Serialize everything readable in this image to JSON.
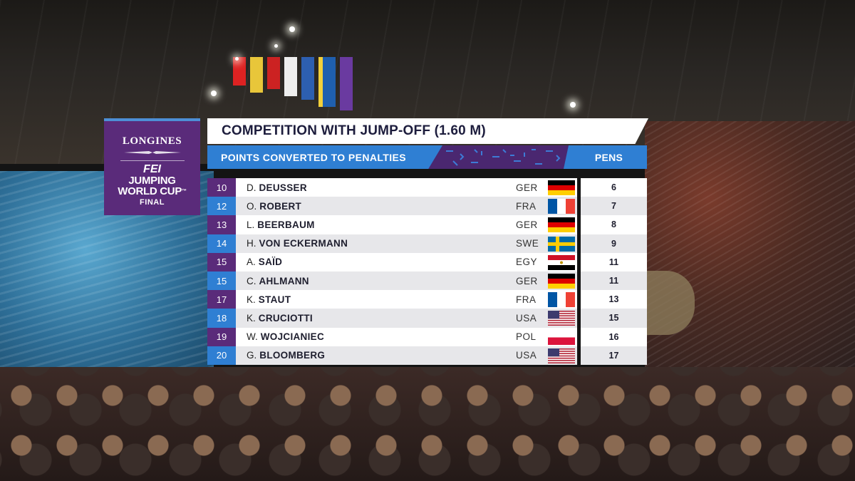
{
  "logo": {
    "brand": "LONGINES",
    "fei": "FEI",
    "event_line1": "JUMPING",
    "event_line2": "WORLD CUP",
    "event_tm": "™",
    "event_line3": "FINAL"
  },
  "header": {
    "title": "COMPETITION WITH JUMP-OFF (1.60 M)",
    "subtitle": "POINTS CONVERTED TO PENALTIES",
    "pens_label": "PENS"
  },
  "colors": {
    "purple": "#5a2b7a",
    "blue": "#2f7fd3",
    "row_light": "#ffffff",
    "row_grey": "#e7e7ea"
  },
  "rows": [
    {
      "rank": "10",
      "initial": "D.",
      "surname": "DEUSSER",
      "nation": "GER",
      "flag": "germany-flag",
      "pens": "6"
    },
    {
      "rank": "12",
      "initial": "O.",
      "surname": "ROBERT",
      "nation": "FRA",
      "flag": "france-flag",
      "pens": "7"
    },
    {
      "rank": "13",
      "initial": "L.",
      "surname": "BEERBAUM",
      "nation": "GER",
      "flag": "germany-flag",
      "pens": "8"
    },
    {
      "rank": "14",
      "initial": "H.",
      "surname": "VON ECKERMANN",
      "nation": "SWE",
      "flag": "sweden-flag",
      "pens": "9"
    },
    {
      "rank": "15",
      "initial": "A.",
      "surname": "SAÏD",
      "nation": "EGY",
      "flag": "egypt-flag",
      "pens": "11"
    },
    {
      "rank": "15",
      "initial": "C.",
      "surname": "AHLMANN",
      "nation": "GER",
      "flag": "germany-flag",
      "pens": "11"
    },
    {
      "rank": "17",
      "initial": "K.",
      "surname": "STAUT",
      "nation": "FRA",
      "flag": "france-flag",
      "pens": "13"
    },
    {
      "rank": "18",
      "initial": "K.",
      "surname": "CRUCIOTTI",
      "nation": "USA",
      "flag": "usa-flag",
      "pens": "15"
    },
    {
      "rank": "19",
      "initial": "W.",
      "surname": "WOJCIANIEC",
      "nation": "POL",
      "flag": "poland-flag",
      "pens": "16"
    },
    {
      "rank": "20",
      "initial": "G.",
      "surname": "BLOOMBERG",
      "nation": "USA",
      "flag": "usa-flag",
      "pens": "17"
    }
  ]
}
